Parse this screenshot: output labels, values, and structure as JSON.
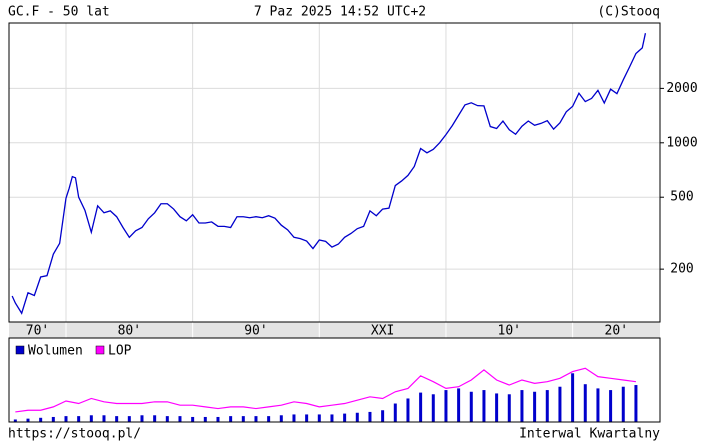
{
  "header": {
    "left": "GC.F - 50 lat",
    "center": "7 Paz 2025 14:52 UTC+2",
    "right": "(C)Stooq"
  },
  "footer": {
    "left": "https://stooq.pl/",
    "right": "Interwal Kwartalny"
  },
  "chart_data": [
    {
      "type": "line",
      "color": "#0000cc",
      "log_scale": true,
      "grid": true,
      "xlim": [
        1975.5,
        2026.9
      ],
      "xticks": [
        {
          "value": 1970,
          "label": "70'"
        },
        {
          "value": 1980,
          "label": "80'"
        },
        {
          "value": 1990,
          "label": "90'"
        },
        {
          "value": 2000,
          "label": "XXI"
        },
        {
          "value": 2010,
          "label": "10'"
        },
        {
          "value": 2020,
          "label": "20'"
        }
      ],
      "ylim": [
        102,
        4600
      ],
      "yticks": [
        200,
        500,
        1000,
        2000
      ],
      "x": [
        1975.75,
        1976,
        1976.5,
        1977,
        1977.5,
        1978,
        1978.5,
        1979,
        1979.5,
        1980,
        1980.25,
        1980.5,
        1980.75,
        1981,
        1981.5,
        1982,
        1982.5,
        1983,
        1983.5,
        1984,
        1984.5,
        1985,
        1985.5,
        1986,
        1986.5,
        1987,
        1987.5,
        1988,
        1988.5,
        1989,
        1989.5,
        1990,
        1990.5,
        1991,
        1991.5,
        1992,
        1992.5,
        1993,
        1993.5,
        1994,
        1994.5,
        1995,
        1995.5,
        1996,
        1996.5,
        1997,
        1997.5,
        1998,
        1998.5,
        1999,
        1999.5,
        2000,
        2000.5,
        2001,
        2001.5,
        2002,
        2002.5,
        2003,
        2003.5,
        2004,
        2004.5,
        2005,
        2005.5,
        2006,
        2006.5,
        2007,
        2007.5,
        2008,
        2008.5,
        2009,
        2009.5,
        2010,
        2010.5,
        2011,
        2011.5,
        2012,
        2012.5,
        2013,
        2013.5,
        2014,
        2014.5,
        2015,
        2015.5,
        2016,
        2016.5,
        2017,
        2017.5,
        2018,
        2018.5,
        2019,
        2019.5,
        2020,
        2020.5,
        2021,
        2021.5,
        2022,
        2022.5,
        2023,
        2023.5,
        2024,
        2024.5,
        2025,
        2025.5,
        2025.75
      ],
      "values": [
        142,
        130,
        114,
        148,
        143,
        181,
        184,
        242,
        278,
        494,
        560,
        650,
        640,
        500,
        422,
        320,
        448,
        410,
        420,
        390,
        340,
        300,
        326,
        340,
        380,
        410,
        460,
        460,
        430,
        390,
        370,
        400,
        360,
        360,
        365,
        345,
        345,
        340,
        390,
        390,
        385,
        390,
        385,
        395,
        383,
        350,
        330,
        300,
        295,
        286,
        260,
        290,
        285,
        265,
        275,
        300,
        315,
        335,
        345,
        420,
        395,
        430,
        435,
        580,
        615,
        660,
        740,
        930,
        880,
        920,
        1000,
        1110,
        1245,
        1420,
        1620,
        1665,
        1605,
        1600,
        1230,
        1200,
        1320,
        1180,
        1115,
        1235,
        1320,
        1250,
        1280,
        1325,
        1190,
        1290,
        1485,
        1590,
        1880,
        1690,
        1760,
        1950,
        1660,
        1980,
        1870,
        2230,
        2630,
        3120,
        3350,
        4040
      ]
    },
    {
      "type": "combo",
      "xlim": [
        1975.5,
        2026.9
      ],
      "ylim": [
        0,
        100
      ],
      "x": [
        1976,
        1977,
        1978,
        1979,
        1980,
        1981,
        1982,
        1983,
        1984,
        1985,
        1986,
        1987,
        1988,
        1989,
        1990,
        1991,
        1992,
        1993,
        1994,
        1995,
        1996,
        1997,
        1998,
        1999,
        2000,
        2001,
        2002,
        2003,
        2004,
        2005,
        2006,
        2007,
        2008,
        2009,
        2010,
        2011,
        2012,
        2013,
        2014,
        2015,
        2016,
        2017,
        2018,
        2019,
        2020,
        2021,
        2022,
        2023,
        2024,
        2025
      ],
      "series": [
        {
          "name": "Wolumen",
          "type": "bar",
          "color": "#0000cc",
          "values": [
            3,
            4,
            5,
            6,
            7,
            7,
            8,
            8,
            7,
            7,
            8,
            8,
            7,
            7,
            6,
            6,
            6,
            7,
            7,
            7,
            7,
            8,
            9,
            9,
            9,
            9,
            10,
            11,
            12,
            14,
            22,
            28,
            35,
            33,
            38,
            40,
            36,
            38,
            34,
            33,
            38,
            36,
            38,
            42,
            58,
            45,
            40,
            38,
            42,
            44
          ]
        },
        {
          "name": "LOP",
          "type": "line",
          "color": "#ff00ff",
          "values": [
            12,
            14,
            14,
            18,
            25,
            22,
            28,
            24,
            22,
            22,
            22,
            24,
            24,
            20,
            20,
            18,
            16,
            18,
            18,
            16,
            18,
            20,
            24,
            22,
            18,
            20,
            22,
            26,
            30,
            28,
            36,
            40,
            55,
            48,
            40,
            42,
            50,
            62,
            50,
            44,
            50,
            46,
            48,
            52,
            60,
            64,
            54,
            52,
            50,
            48
          ]
        }
      ]
    }
  ]
}
